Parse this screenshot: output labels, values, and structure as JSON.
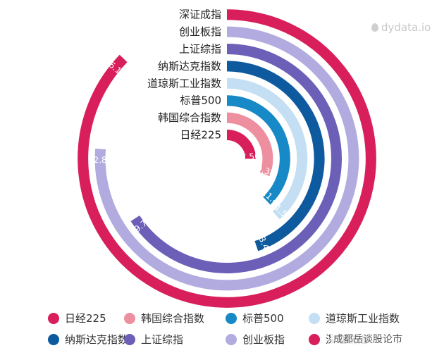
{
  "chart_data": {
    "type": "radial-bar",
    "max_value": 30,
    "series": [
      {
        "name": "日经225",
        "value": 7.56,
        "label": "7.56",
        "color": "#d81e5b"
      },
      {
        "name": "韩国综合指数",
        "value": 9.38,
        "label": "9.38",
        "color": "#ee8fa0"
      },
      {
        "name": "标普500",
        "value": 11.4,
        "label": "11.4",
        "color": "#1789c6"
      },
      {
        "name": "道琼斯工业指数",
        "value": 11.59,
        "label": "11.59",
        "color": "#c4dff3"
      },
      {
        "name": "纳斯达克指数",
        "value": 13.45,
        "label": "13.45",
        "color": "#0d5a9e"
      },
      {
        "name": "上证综指",
        "value": 19.74,
        "label": "19.74",
        "color": "#6c5fb8"
      },
      {
        "name": "创业板指",
        "value": 22.86,
        "label": "22.86",
        "color": "#b1abdf"
      },
      {
        "name": "深证成指",
        "value": 26.17,
        "label": "26.17",
        "color": "#d81e5b"
      }
    ],
    "legend_position": "bottom"
  },
  "brand": "dydata.io",
  "watermark": "成都岳谈股论市"
}
